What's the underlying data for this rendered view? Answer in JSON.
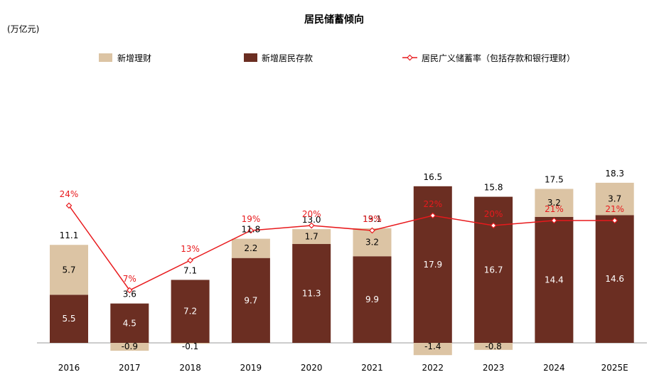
{
  "chart_data": {
    "type": "bar",
    "title": "居民储蓄倾向",
    "ylabel": "(万亿元)",
    "categories": [
      "2016",
      "2017",
      "2018",
      "2019",
      "2020",
      "2021",
      "2022",
      "2023",
      "2024",
      "2025E"
    ],
    "series": [
      {
        "name": "新增居民存款",
        "values": [
          5.5,
          4.5,
          7.2,
          9.7,
          11.3,
          9.9,
          17.9,
          16.7,
          14.4,
          14.6
        ],
        "labels": [
          "5.5",
          "4.5",
          "7.2",
          "9.7",
          "11.3",
          "9.9",
          "17.9",
          "16.7",
          "14.4",
          "14.6"
        ],
        "color": "#6b2e22"
      },
      {
        "name": "新增理财",
        "values": [
          5.7,
          -0.9,
          -0.1,
          2.2,
          1.7,
          3.2,
          -1.4,
          -0.8,
          3.2,
          3.7
        ],
        "labels": [
          "5.7",
          "-0.9",
          "-0.1",
          "2.2",
          "1.7",
          "3.2",
          "-1.4",
          "-0.8",
          "3.2",
          "3.7"
        ],
        "color": "#dcc4a4"
      },
      {
        "name": "居民广义储蓄率（包括存款和银行理财）",
        "type": "line",
        "values": [
          24,
          7,
          13,
          19,
          20,
          19,
          22,
          20,
          21,
          21
        ],
        "labels": [
          "24%",
          "7%",
          "13%",
          "19%",
          "20%",
          "19%",
          "22%",
          "20%",
          "21%",
          "21%"
        ],
        "color": "#e8191c"
      }
    ],
    "totals": [
      11.1,
      3.6,
      7.1,
      11.8,
      13.0,
      13.1,
      16.5,
      15.8,
      17.5,
      18.3
    ],
    "total_labels": [
      "11.1",
      "3.6",
      "7.1",
      "11.8",
      "13.0",
      "13.1",
      "16.5",
      "15.8",
      "17.5",
      "18.3"
    ],
    "legend_position": "top",
    "grid": false
  }
}
